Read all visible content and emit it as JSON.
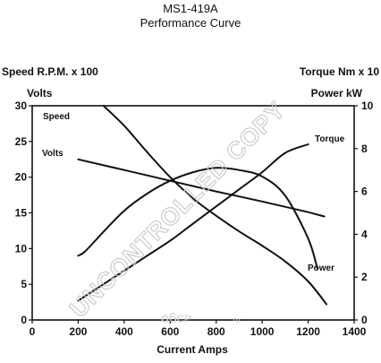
{
  "header": {
    "title": "MS1-419A",
    "subtitle": "Performance Curve"
  },
  "watermark": "UNCONTROLLED COPY",
  "logo": {
    "main": "ᴏ6ᴄᴘ",
    "suffix": ".ru"
  },
  "chart_data": {
    "type": "line",
    "xlabel": "Current Amps",
    "ylabel_left": [
      "Speed R.P.M. x 100",
      "Volts"
    ],
    "ylabel_right": [
      "Torque Nm x 10",
      "Power kW"
    ],
    "xlim": [
      0,
      1400
    ],
    "ylim_left": [
      0,
      30
    ],
    "ylim_right": [
      0,
      10
    ],
    "xticks": [
      "0",
      "200",
      "400",
      "600",
      "800",
      "1000",
      "1200",
      "1400"
    ],
    "yticks_left": [
      "0",
      "5",
      "10",
      "15",
      "20",
      "25",
      "30"
    ],
    "yticks_right": [
      "0",
      "2",
      "4",
      "6",
      "8",
      "10"
    ],
    "grid": false,
    "series": [
      {
        "name": "Speed",
        "axis": "left",
        "x": [
          310,
          400,
          500,
          600,
          700,
          800,
          900,
          1000,
          1100,
          1200,
          1280
        ],
        "y": [
          30,
          27.2,
          23.5,
          20,
          17,
          14.6,
          12.4,
          10.4,
          8.2,
          5.4,
          2.2
        ]
      },
      {
        "name": "Volts",
        "axis": "left",
        "x": [
          200,
          400,
          600,
          800,
          1000,
          1200,
          1270
        ],
        "y": [
          22.5,
          21,
          19.5,
          18,
          16.6,
          15.1,
          14.5
        ]
      },
      {
        "name": "Torque",
        "axis": "right",
        "x": [
          200,
          300,
          400,
          500,
          600,
          700,
          800,
          900,
          1000,
          1100,
          1200
        ],
        "y": [
          0.9,
          1.6,
          2.3,
          3.0,
          3.7,
          4.5,
          5.3,
          6.1,
          6.9,
          7.8,
          8.2
        ]
      },
      {
        "name": "Power",
        "axis": "right",
        "x": [
          200,
          230,
          300,
          400,
          500,
          600,
          700,
          800,
          900,
          1000,
          1100,
          1200,
          1240
        ],
        "y": [
          3.0,
          3.2,
          4.0,
          5.1,
          5.9,
          6.5,
          6.9,
          7.1,
          7.0,
          6.7,
          5.8,
          3.8,
          2.4
        ]
      }
    ],
    "series_labels": [
      "Speed",
      "Volts",
      "Torque",
      "Power"
    ]
  }
}
